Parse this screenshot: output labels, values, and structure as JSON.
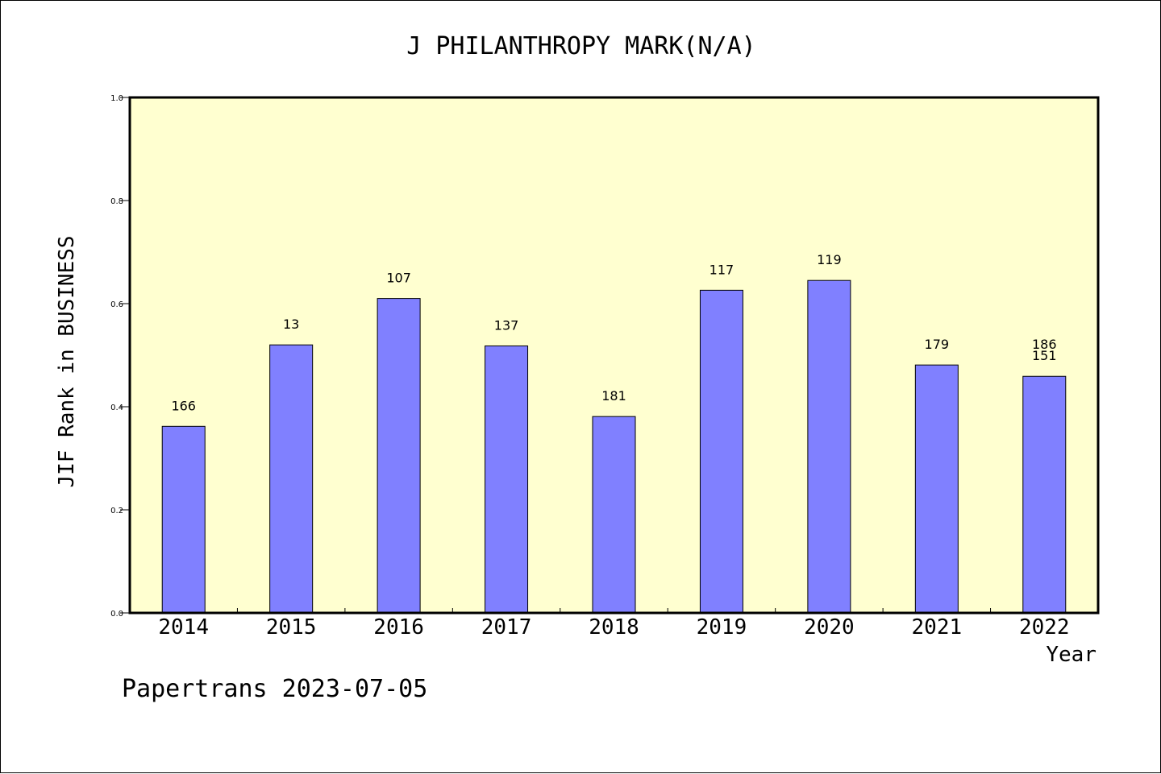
{
  "chart_data": {
    "type": "bar",
    "title": "J PHILANTHROPY MARK(N/A)",
    "ylabel": "JIF Rank in BUSINESS",
    "xlabel": "Year",
    "ylim": [
      0,
      1.0
    ],
    "yticks": [
      "0.0",
      "0.2",
      "0.4",
      "0.6",
      "0.8",
      "1.0"
    ],
    "categories": [
      "2014",
      "2015",
      "2016",
      "2017",
      "2018",
      "2019",
      "2020",
      "2021",
      "2022"
    ],
    "values": [
      0.362,
      0.52,
      0.61,
      0.518,
      0.381,
      0.626,
      0.645,
      0.481,
      0.459
    ],
    "labels": [
      [
        "166"
      ],
      [
        "13"
      ],
      [
        "107"
      ],
      [
        "137"
      ],
      [
        "181"
      ],
      [
        "117"
      ],
      [
        "119"
      ],
      [
        "179"
      ],
      [
        "186",
        "151"
      ]
    ],
    "grid": false,
    "colors": {
      "bar": "#8080ff",
      "plot_bg": "#ffffd0",
      "axis": "#000000"
    }
  },
  "footer": "Papertrans 2023-07-05"
}
